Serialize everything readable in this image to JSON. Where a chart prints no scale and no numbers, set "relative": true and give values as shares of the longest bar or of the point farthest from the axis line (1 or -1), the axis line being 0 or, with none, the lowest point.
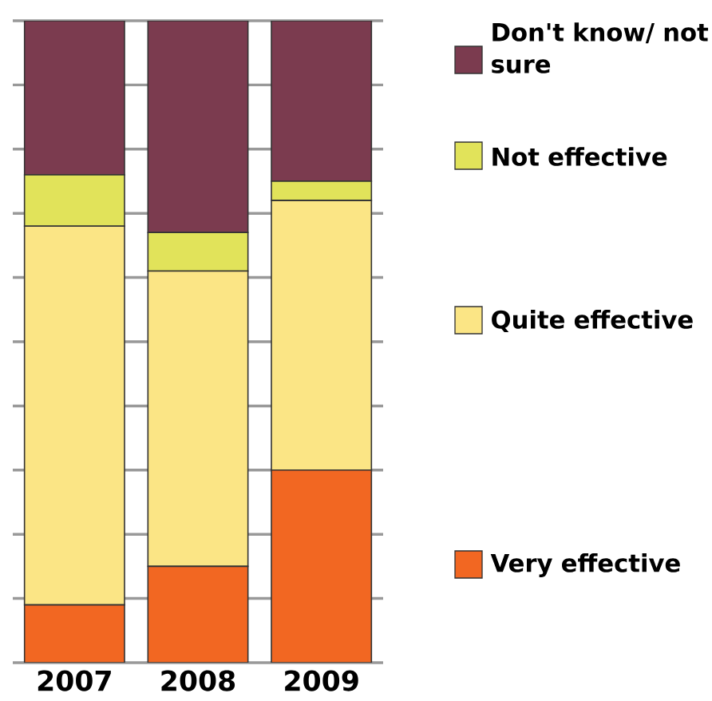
{
  "chart_data": {
    "type": "bar",
    "stacked": true,
    "relative": true,
    "grid": "y",
    "legend": "right",
    "categories": [
      "2007",
      "2008",
      "2009"
    ],
    "series": [
      {
        "name": "Very effective",
        "color": "#f26722",
        "values": [
          0.09,
          0.15,
          0.3
        ]
      },
      {
        "name": "Quite effective",
        "color": "#fbe585",
        "values": [
          0.59,
          0.46,
          0.42
        ]
      },
      {
        "name": "Not effective",
        "color": "#e1e35a",
        "values": [
          0.08,
          0.06,
          0.03
        ]
      },
      {
        "name": "Don't know/ not sure",
        "color": "#7b3b4f",
        "values": [
          0.24,
          0.33,
          0.25
        ]
      }
    ]
  }
}
